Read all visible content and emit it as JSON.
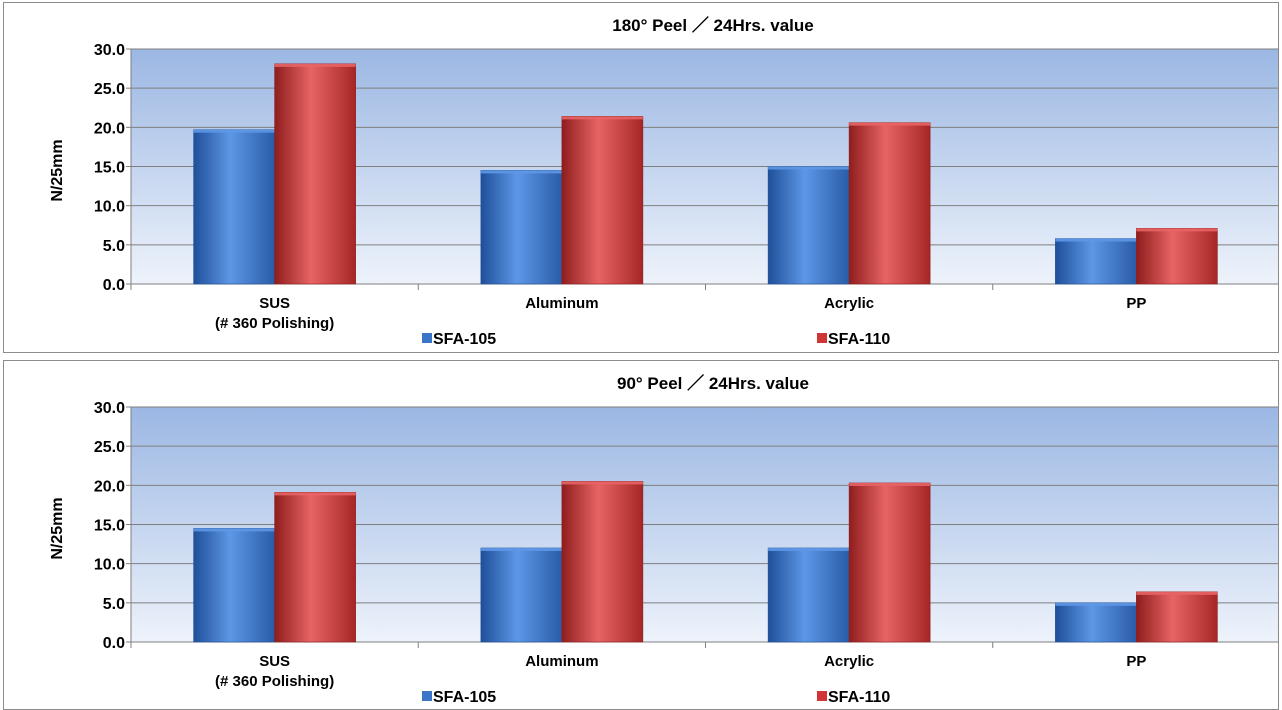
{
  "colors": {
    "series_1": "#3a75c7",
    "series_2": "#d13636",
    "plot_top": "#9bb7e3",
    "plot_bottom": "#eef3fb"
  },
  "chart_data": [
    {
      "type": "bar",
      "title": "180° Peel ／ 24Hrs. value",
      "ylabel": "N/25mm",
      "xlabel": "",
      "categories": [
        "SUS",
        "Aluminum",
        "Acrylic",
        "PP"
      ],
      "category_sublabels": [
        "(# 360 Polishing)",
        "",
        "",
        ""
      ],
      "series": [
        {
          "name": "SFA-105",
          "values": [
            19.7,
            14.5,
            15.0,
            5.8
          ]
        },
        {
          "name": "SFA-110",
          "values": [
            28.1,
            21.4,
            20.6,
            7.1
          ]
        }
      ],
      "ylim": [
        0,
        30
      ],
      "yticks": [
        "0.0",
        "5.0",
        "10.0",
        "15.0",
        "20.0",
        "25.0",
        "30.0"
      ],
      "grid": true,
      "legend_position": "bottom"
    },
    {
      "type": "bar",
      "title": "90° Peel ／ 24Hrs. value",
      "ylabel": "N/25mm",
      "xlabel": "",
      "categories": [
        "SUS",
        "Aluminum",
        "Acrylic",
        "PP"
      ],
      "category_sublabels": [
        "(# 360 Polishing)",
        "",
        "",
        ""
      ],
      "series": [
        {
          "name": "SFA-105",
          "values": [
            14.5,
            12.0,
            12.0,
            5.0
          ]
        },
        {
          "name": "SFA-110",
          "values": [
            19.1,
            20.5,
            20.3,
            6.4
          ]
        }
      ],
      "ylim": [
        0,
        30
      ],
      "yticks": [
        "0.0",
        "5.0",
        "10.0",
        "15.0",
        "20.0",
        "25.0",
        "30.0"
      ],
      "grid": true,
      "legend_position": "bottom"
    }
  ]
}
